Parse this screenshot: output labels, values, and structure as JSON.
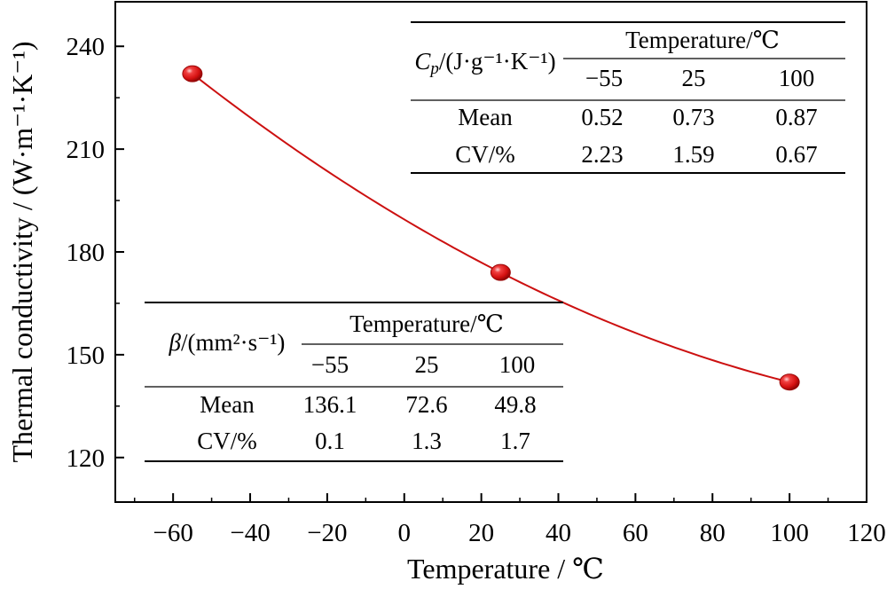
{
  "chart_data": {
    "type": "scatter",
    "xlabel": "Temperature / ℃",
    "ylabel": "Thermal conductivity / (W·m⁻¹·K⁻¹)",
    "xlim": [
      -75,
      120
    ],
    "ylim": [
      107,
      253
    ],
    "xticks": [
      -60,
      -40,
      -20,
      0,
      20,
      40,
      60,
      80,
      100,
      120
    ],
    "xtick_labels": [
      "−60",
      "−40",
      "−20",
      "0",
      "20",
      "40",
      "60",
      "80",
      "100",
      "120"
    ],
    "yticks": [
      120,
      150,
      180,
      210,
      240
    ],
    "ytick_labels": [
      "120",
      "150",
      "180",
      "210",
      "240"
    ],
    "grid": false,
    "series": [
      {
        "x": [
          -55,
          25,
          100
        ],
        "y": [
          232,
          174,
          142
        ],
        "color": "#e01010",
        "line_color": "#cc1010",
        "fit": "smooth curve"
      }
    ],
    "tables": [
      {
        "header": "Cp/(J·g⁻¹·K⁻¹)",
        "header_main": "C",
        "header_sub": "p",
        "header_rest": "/(J·g⁻¹·K⁻¹)",
        "group_label": "Temperature/℃",
        "columns": [
          "−55",
          "25",
          "100"
        ],
        "rows": [
          {
            "label": "Mean",
            "values": [
              "0.52",
              "0.73",
              "0.87"
            ]
          },
          {
            "label": "CV/%",
            "values": [
              "2.23",
              "1.59",
              "0.67"
            ]
          }
        ]
      },
      {
        "header": "β/(mm²·s⁻¹)",
        "header_main": "β",
        "header_rest": "/(mm²·s⁻¹)",
        "group_label": "Temperature/℃",
        "columns": [
          "−55",
          "25",
          "100"
        ],
        "rows": [
          {
            "label": "Mean",
            "values": [
              "136.1",
              "72.6",
              "49.8"
            ]
          },
          {
            "label": "CV/%",
            "values": [
              "0.1",
              "1.3",
              "1.7"
            ]
          }
        ]
      }
    ]
  }
}
